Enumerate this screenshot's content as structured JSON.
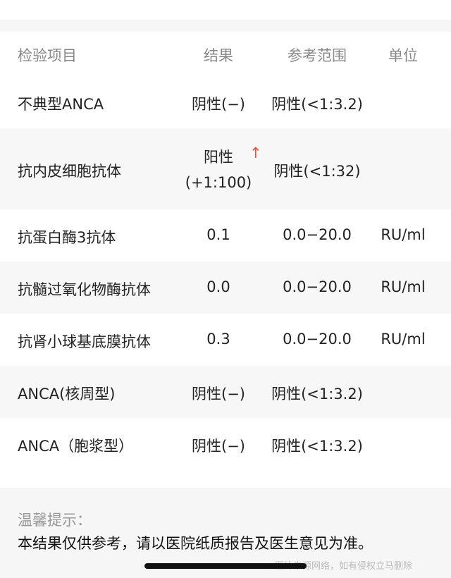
{
  "table": {
    "header": [
      "检验项目",
      "结果",
      "参考范围",
      "单位"
    ],
    "rows": [
      {
        "name": "不典型ANCA",
        "result": "阴性(−)",
        "range": "阴性(<1:3.2)"
      },
      {
        "name": "抗内皮细胞抗体",
        "result": "阳性",
        "flag": "↑",
        "result_note": "(+1:100)",
        "range": "阴性(<1:32)"
      },
      {
        "name": "抗蛋白酶3抗体",
        "result": "0.1",
        "range": "0.0−20.0",
        "unit": "RU/ml"
      },
      {
        "name": "抗髓过氧化物酶抗体",
        "result": "0.0",
        "range": "0.0−20.0",
        "unit": "RU/ml"
      },
      {
        "name": "抗肾小球基底膜抗体",
        "result": "0.3",
        "range": "0.0−20.0",
        "unit": "RU/ml"
      },
      {
        "name": "ANCA(核周型)",
        "result": "阴性(−)",
        "range": "阴性(<1:3.2)"
      },
      {
        "name": "ANCA（胞浆型）",
        "result": "阴性(−)",
        "range": "阴性(<1:3.2)"
      }
    ]
  },
  "note": {
    "title": "温馨提示：",
    "text": "本结果仅供参考，请以医院纸质报告及医生意见为准。"
  },
  "watermark": "图片来源网络，如有侵权立马删除"
}
